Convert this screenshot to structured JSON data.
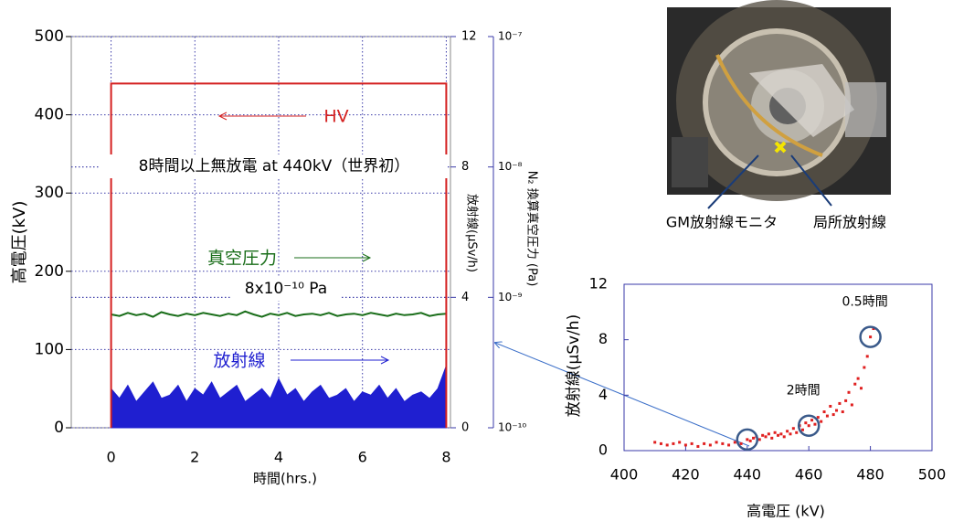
{
  "chart_data": [
    {
      "type": "line",
      "xlabel": "時間(hrs.)",
      "ylabel": "高電圧(kV)",
      "y2label": "放射線(μSv/h)",
      "y3label": "N₂ 換算真空圧力 (Pa)",
      "xlim": [
        -0.95,
        8.1
      ],
      "xticks": [
        0,
        2,
        4,
        6,
        8
      ],
      "ylim": [
        0,
        500
      ],
      "yticks": [
        0,
        100,
        200,
        300,
        400,
        500
      ],
      "y2lim": [
        0,
        12
      ],
      "y2ticks": [
        0,
        4,
        8,
        12
      ],
      "y3lim": [
        1e-10,
        1e-07
      ],
      "y3log": true,
      "y3ticks": [
        {
          "value": 1e-10,
          "label": "10⁻¹⁰"
        },
        {
          "value": 1e-09,
          "label": "10⁻⁹"
        },
        {
          "value": 1e-08,
          "label": "10⁻⁸"
        },
        {
          "value": 1e-07,
          "label": "10⁻⁷"
        }
      ],
      "grid": true,
      "series": [
        {
          "name": "放射線",
          "color": "#1f1fd0",
          "axis": "y2",
          "fill": true,
          "x": [
            0,
            0.2,
            0.4,
            0.6,
            0.8,
            1,
            1.2,
            1.4,
            1.6,
            1.8,
            2,
            2.2,
            2.4,
            2.6,
            2.8,
            3,
            3.2,
            3.4,
            3.6,
            3.8,
            4,
            4.2,
            4.4,
            4.6,
            4.8,
            5,
            5.2,
            5.4,
            5.6,
            5.8,
            6,
            6.2,
            6.4,
            6.6,
            6.8,
            7,
            7.2,
            7.4,
            7.6,
            7.8,
            8
          ],
          "values": [
            1.2,
            0.9,
            1.3,
            0.8,
            1.1,
            1.4,
            0.9,
            1.0,
            1.3,
            0.8,
            1.2,
            1.0,
            1.4,
            0.9,
            1.1,
            1.3,
            0.8,
            1.0,
            1.2,
            0.9,
            1.5,
            1.0,
            1.2,
            0.8,
            1.1,
            1.3,
            0.9,
            1.0,
            1.2,
            0.8,
            1.1,
            1.0,
            1.3,
            0.9,
            1.2,
            0.8,
            1.0,
            1.1,
            0.9,
            1.2,
            1.9
          ]
        },
        {
          "name": "真空圧力",
          "color": "#1a6e1a",
          "axis": "y3",
          "x": [
            0,
            0.2,
            0.4,
            0.6,
            0.8,
            1,
            1.2,
            1.4,
            1.6,
            1.8,
            2,
            2.2,
            2.4,
            2.6,
            2.8,
            3,
            3.2,
            3.4,
            3.6,
            3.8,
            4,
            4.2,
            4.4,
            4.6,
            4.8,
            5,
            5.2,
            5.4,
            5.6,
            5.8,
            6,
            6.2,
            6.4,
            6.6,
            6.8,
            7,
            7.2,
            7.4,
            7.6,
            7.8,
            8
          ],
          "values": [
            7.4e-10,
            7.2e-10,
            7.6e-10,
            7.3e-10,
            7.5e-10,
            7.1e-10,
            7.7e-10,
            7.4e-10,
            7.2e-10,
            7.5e-10,
            7.3e-10,
            7.6e-10,
            7.4e-10,
            7.2e-10,
            7.5e-10,
            7.3e-10,
            7.8e-10,
            7.4e-10,
            7.1e-10,
            7.5e-10,
            7.3e-10,
            7.6e-10,
            7.2e-10,
            7.4e-10,
            7.5e-10,
            7.3e-10,
            7.6e-10,
            7.2e-10,
            7.4e-10,
            7.5e-10,
            7.3e-10,
            7.6e-10,
            7.4e-10,
            7.2e-10,
            7.5e-10,
            7.3e-10,
            7.4e-10,
            7.6e-10,
            7.2e-10,
            7.4e-10,
            7.5e-10
          ]
        },
        {
          "name": "HV",
          "color": "#d42020",
          "x": [
            0,
            0,
            8,
            8
          ],
          "values": [
            0,
            440,
            440,
            0
          ]
        }
      ],
      "annotations": [
        {
          "text": "8時間以上無放電 at 440kV（世界初）"
        },
        {
          "text": "8x10⁻¹⁰ Pa"
        }
      ]
    },
    {
      "type": "scatter",
      "xlabel": "高電圧 (kV)",
      "ylabel": "放射線(μSv/h)",
      "color": "#e02020",
      "xlim": [
        400,
        500
      ],
      "xticks": [
        400,
        420,
        440,
        460,
        480,
        500
      ],
      "ylim": [
        0,
        12
      ],
      "yticks": [
        0,
        4,
        8,
        12
      ],
      "x": [
        410,
        412,
        414,
        416,
        418,
        420,
        422,
        424,
        426,
        428,
        430,
        432,
        434,
        436,
        438,
        440,
        441,
        442,
        443,
        444,
        445,
        446,
        447,
        448,
        449,
        450,
        451,
        452,
        453,
        454,
        455,
        456,
        457,
        458,
        459,
        460,
        461,
        462,
        463,
        464,
        465,
        466,
        467,
        468,
        469,
        470,
        471,
        472,
        473,
        474,
        475,
        476,
        477,
        478,
        479,
        480,
        481
      ],
      "values": [
        0.6,
        0.5,
        0.4,
        0.5,
        0.6,
        0.4,
        0.5,
        0.3,
        0.5,
        0.4,
        0.6,
        0.5,
        0.4,
        0.6,
        0.5,
        0.8,
        0.7,
        0.9,
        1.0,
        0.8,
        1.1,
        1.0,
        1.2,
        0.9,
        1.3,
        1.1,
        1.2,
        1.0,
        1.4,
        1.2,
        1.6,
        1.3,
        1.8,
        1.5,
        2.0,
        1.8,
        2.2,
        1.9,
        2.4,
        2.1,
        2.8,
        2.5,
        3.2,
        2.6,
        2.9,
        3.4,
        2.8,
        3.6,
        4.2,
        3.3,
        4.8,
        5.2,
        4.5,
        6.0,
        6.8,
        8.2,
        8.8
      ],
      "annotations": [
        {
          "x": 440,
          "y": 0.8
        },
        {
          "x": 460,
          "y": 1.8,
          "text": "2時間"
        },
        {
          "x": 480,
          "y": 8.2,
          "text": "0.5時間"
        }
      ]
    }
  ],
  "photo": {
    "labels": [
      "GM放射線モニタ",
      "局所放射線"
    ]
  }
}
